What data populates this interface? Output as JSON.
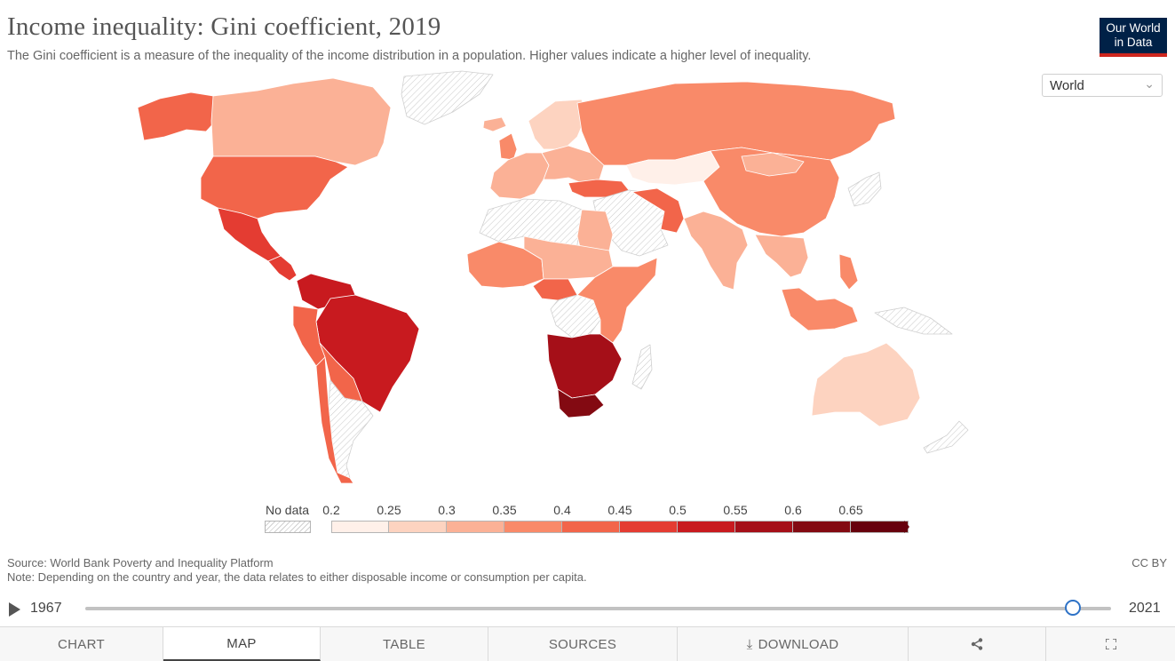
{
  "header": {
    "title": "Income inequality: Gini coefficient, 2019",
    "subtitle": "The Gini coefficient is a measure of the inequality of the income distribution in a population. Higher values indicate a higher level of inequality.",
    "logo_line1": "Our World",
    "logo_line2": "in Data",
    "region_value": "World"
  },
  "colors": {
    "bins": [
      "#fff0e9",
      "#fdd3c0",
      "#fbb196",
      "#f98a69",
      "#f2654a",
      "#e43c32",
      "#c81a1f",
      "#a50f18",
      "#830a12",
      "#67000d"
    ],
    "no_data": "#ffffff",
    "brand_navy": "#002147",
    "brand_red": "#ce261e",
    "slider_accent": "#2e72c6"
  },
  "legend": {
    "no_data_label": "No data",
    "ticks": [
      "0.2",
      "0.25",
      "0.3",
      "0.35",
      "0.4",
      "0.45",
      "0.5",
      "0.55",
      "0.6",
      "0.65"
    ]
  },
  "footer": {
    "source": "Source: World Bank Poverty and Inequality Platform",
    "note": "Note: Depending on the country and year, the data relates to either disposable income or consumption per capita.",
    "license": "CC BY"
  },
  "timeline": {
    "start_year": "1967",
    "end_year": "2021",
    "position": 0.963
  },
  "tabs": [
    "CHART",
    "MAP",
    "TABLE",
    "SOURCES",
    "DOWNLOAD",
    "",
    ""
  ],
  "map": {
    "regions": [
      {
        "name": "greenland",
        "bin": null
      },
      {
        "name": "alaska",
        "bin": 4
      },
      {
        "name": "canada",
        "bin": 2
      },
      {
        "name": "usa",
        "bin": 4
      },
      {
        "name": "mexico",
        "bin": 5
      },
      {
        "name": "central-america",
        "bin": 5
      },
      {
        "name": "colombia-venezuela",
        "bin": 6
      },
      {
        "name": "brazil",
        "bin": 6
      },
      {
        "name": "peru",
        "bin": 4
      },
      {
        "name": "bolivia-paraguay",
        "bin": 4
      },
      {
        "name": "argentina",
        "bin": null
      },
      {
        "name": "chile",
        "bin": 4
      },
      {
        "name": "iceland",
        "bin": 2
      },
      {
        "name": "scandinavia",
        "bin": 1
      },
      {
        "name": "western-europe",
        "bin": 2
      },
      {
        "name": "eastern-europe",
        "bin": 2
      },
      {
        "name": "uk",
        "bin": 3
      },
      {
        "name": "russia",
        "bin": 3
      },
      {
        "name": "kazakhstan",
        "bin": 0
      },
      {
        "name": "turkey",
        "bin": 4
      },
      {
        "name": "iran",
        "bin": 4
      },
      {
        "name": "middle-east",
        "bin": null
      },
      {
        "name": "north-africa",
        "bin": null
      },
      {
        "name": "egypt",
        "bin": 2
      },
      {
        "name": "west-africa",
        "bin": 3
      },
      {
        "name": "sahel",
        "bin": 2
      },
      {
        "name": "central-africa",
        "bin": 4
      },
      {
        "name": "drc",
        "bin": null
      },
      {
        "name": "east-africa",
        "bin": 3
      },
      {
        "name": "southern-africa",
        "bin": 7
      },
      {
        "name": "south-africa",
        "bin": 8
      },
      {
        "name": "madagascar",
        "bin": null
      },
      {
        "name": "china",
        "bin": 3
      },
      {
        "name": "mongolia",
        "bin": 2
      },
      {
        "name": "india",
        "bin": 2
      },
      {
        "name": "southeast-asia",
        "bin": 2
      },
      {
        "name": "indonesia",
        "bin": 3
      },
      {
        "name": "japan-korea",
        "bin": null
      },
      {
        "name": "philippines",
        "bin": 3
      },
      {
        "name": "australia",
        "bin": 1
      },
      {
        "name": "new-zealand",
        "bin": null
      },
      {
        "name": "papua",
        "bin": null
      }
    ]
  }
}
